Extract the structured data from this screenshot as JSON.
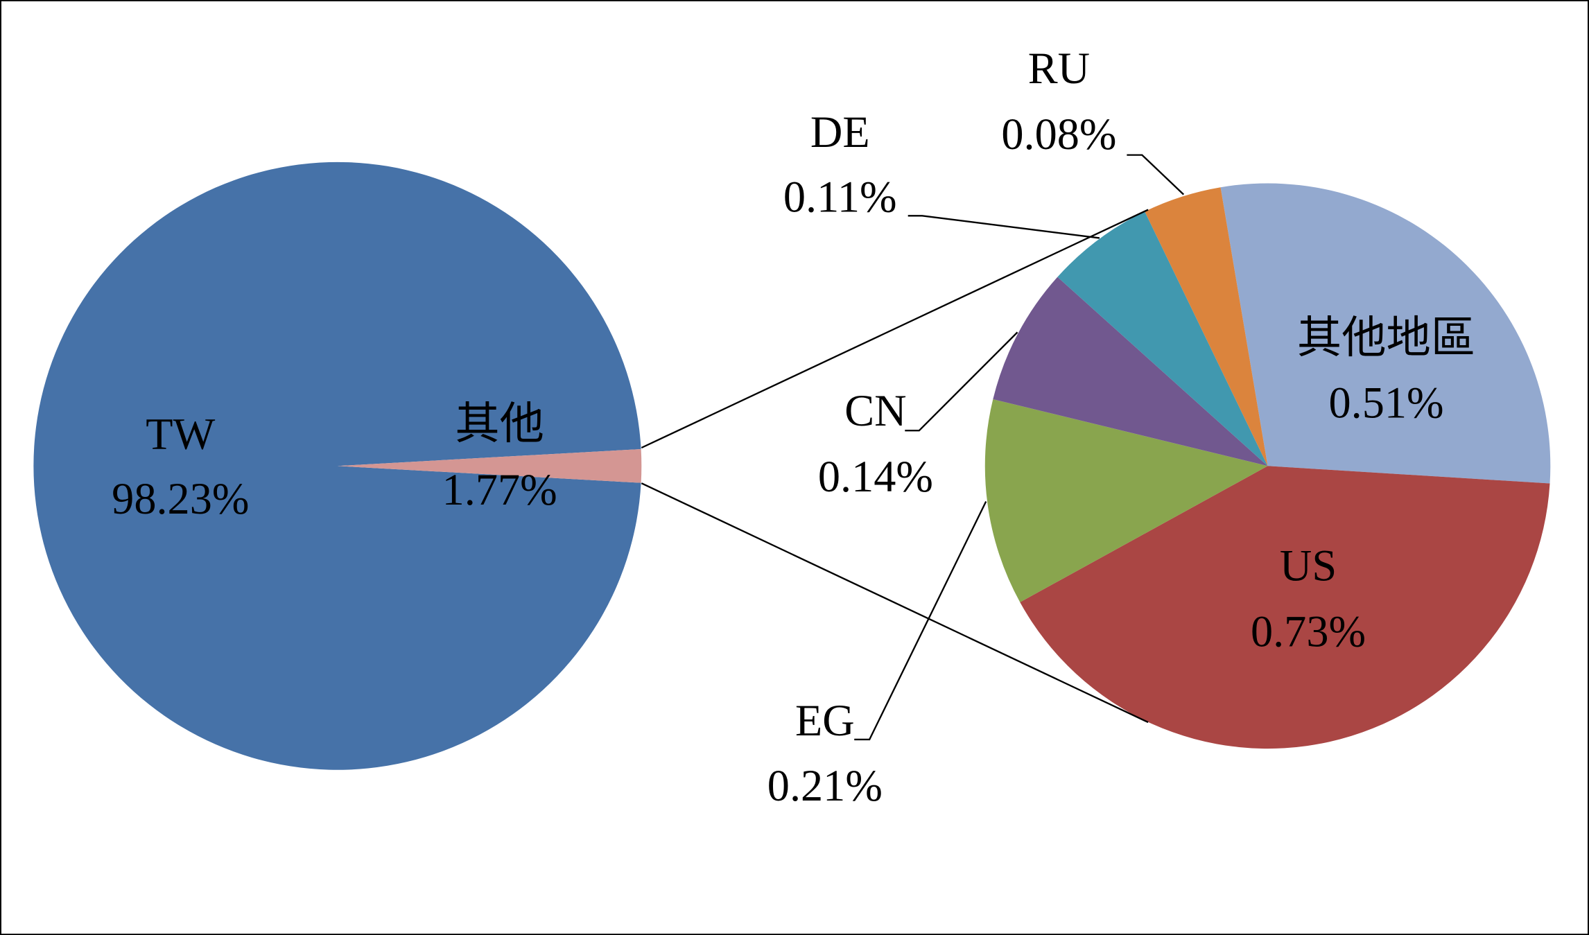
{
  "chart_data": [
    {
      "type": "pie",
      "categories": [
        "TW",
        "其他"
      ],
      "values": [
        98.23,
        1.77
      ],
      "value_labels": [
        "98.23%",
        "1.77%"
      ],
      "colors": [
        "#4672a8",
        "#d49693"
      ]
    },
    {
      "type": "pie",
      "categories": [
        "其他地區",
        "US",
        "EG",
        "CN",
        "DE",
        "RU"
      ],
      "values": [
        0.51,
        0.73,
        0.21,
        0.14,
        0.11,
        0.08
      ],
      "value_labels": [
        "0.51%",
        "0.73%",
        "0.21%",
        "0.14%",
        "0.11%",
        "0.08%"
      ],
      "colors": [
        "#93a9cf",
        "#aa4644",
        "#89a54e",
        "#71588f",
        "#4198af",
        "#db843d"
      ]
    }
  ]
}
